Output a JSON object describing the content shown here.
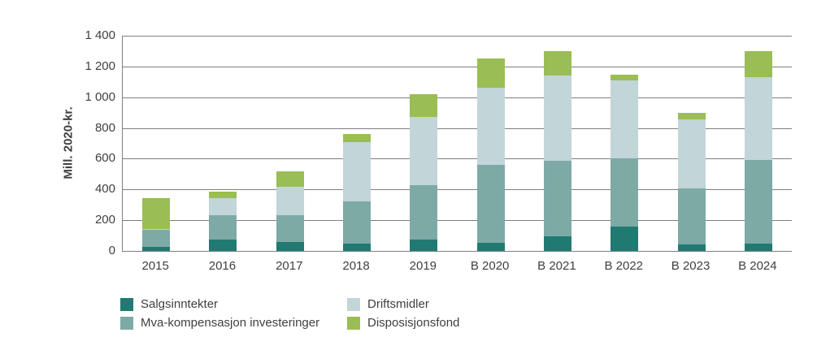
{
  "chart_data": {
    "type": "bar",
    "stacked": true,
    "title": "",
    "xlabel": "",
    "ylabel": "Mill. 2020-kr.",
    "ylim": [
      0,
      1400
    ],
    "ytick_step": 200,
    "ytick_labels": [
      "0",
      "200",
      "400",
      "600",
      "800",
      "1 000",
      "1 200",
      "1 400"
    ],
    "grid": "horizontal",
    "legend_position": "bottom",
    "categories": [
      "2015",
      "2016",
      "2017",
      "2018",
      "2019",
      "B 2020",
      "B 2021",
      "B 2022",
      "B 2023",
      "B 2024"
    ],
    "series": [
      {
        "name": "Salgsinntekter",
        "color": "#217a72",
        "values": [
          25,
          75,
          60,
          50,
          75,
          55,
          95,
          160,
          40,
          45
        ]
      },
      {
        "name": "Mva-kompensasjon investeringer",
        "color": "#7eaaa6",
        "values": [
          110,
          160,
          170,
          270,
          355,
          505,
          490,
          440,
          365,
          545
        ]
      },
      {
        "name": "Driftsmidler",
        "color": "#c2d5d9",
        "values": [
          10,
          110,
          190,
          390,
          440,
          500,
          555,
          510,
          450,
          540
        ]
      },
      {
        "name": "Disposisjonsfond",
        "color": "#9abd55",
        "values": [
          200,
          40,
          100,
          50,
          150,
          190,
          160,
          35,
          45,
          170
        ]
      }
    ],
    "totals": [
      345,
      385,
      520,
      760,
      1020,
      1250,
      1300,
      1145,
      900,
      1300
    ],
    "legend_columns": [
      [
        "Salgsinntekter",
        "Mva-kompensasjon investeringer"
      ],
      [
        "Driftsmidler",
        "Disposisjonsfond"
      ]
    ],
    "axis_color": "#7f7f7f",
    "text_color": "#3f3f3f"
  }
}
